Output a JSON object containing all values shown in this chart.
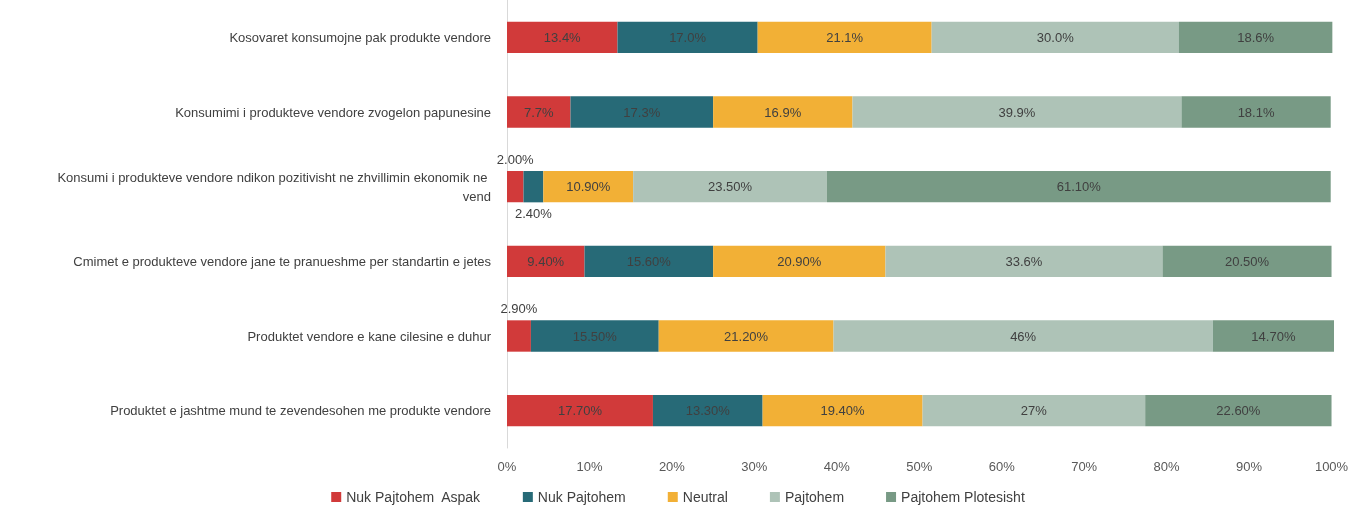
{
  "chart_data": {
    "type": "bar",
    "orientation": "horizontal",
    "stacked": true,
    "legend": "bottom",
    "categories": [
      "Kosovaret konsumojne pak produkte vendore",
      "Konsumimi i produkteve vendore zvogelon papunesine",
      "Konsumi i produkteve vendore ndikon pozitivisht ne zhvillimin ekonomik ne vend",
      "Cmimet e produkteve vendore jane te pranueshme per standartin e jetes",
      "Produktet vendore e kane cilesine e duhur",
      "Produktet e jashtme mund te zevendesohen me produkte vendore"
    ],
    "series": [
      {
        "name": "Nuk Pajtohem  Aspak",
        "color": "#d13a3a",
        "values": [
          13.4,
          7.7,
          2.0,
          9.4,
          2.9,
          17.7
        ],
        "value_labels": [
          "13.4%",
          "7.7%",
          "2.00%",
          "9.40%",
          "2.90%",
          "17.70%"
        ]
      },
      {
        "name": "Nuk Pajtohem",
        "color": "#276a77",
        "values": [
          17.0,
          17.3,
          2.4,
          15.6,
          15.5,
          13.3
        ],
        "value_labels": [
          "17.0%",
          "17.3%",
          "2.40%",
          "15.60%",
          "15.50%",
          "13.30%"
        ]
      },
      {
        "name": "Neutral",
        "color": "#f2b036",
        "values": [
          21.1,
          16.9,
          10.9,
          20.9,
          21.2,
          19.4
        ],
        "value_labels": [
          "21.1%",
          "16.9%",
          "10.90%",
          "20.90%",
          "21.20%",
          "19.40%"
        ]
      },
      {
        "name": "Pajtohem",
        "color": "#aec3b7",
        "values": [
          30.0,
          39.9,
          23.5,
          33.6,
          46,
          27
        ],
        "value_labels": [
          "30.0%",
          "39.9%",
          "23.50%",
          "33.6%",
          "46%",
          "27%"
        ]
      },
      {
        "name": "Pajtohem Plotesisht",
        "color": "#789a85",
        "values": [
          18.6,
          18.1,
          61.1,
          20.5,
          14.7,
          22.6
        ],
        "value_labels": [
          "18.6%",
          "18.1%",
          "61.10%",
          "20.50%",
          "14.70%",
          "22.60%"
        ]
      }
    ],
    "xlim": [
      0,
      100.3
    ],
    "xticks": [
      {
        "value": 0,
        "label": "0%"
      },
      {
        "value": 10,
        "label": "10%"
      },
      {
        "value": 20,
        "label": "20%"
      },
      {
        "value": 30,
        "label": "30%"
      },
      {
        "value": 40,
        "label": "40%"
      },
      {
        "value": 50,
        "label": "50%"
      },
      {
        "value": 60,
        "label": "60%"
      },
      {
        "value": 70,
        "label": "70%"
      },
      {
        "value": 80,
        "label": "80%"
      },
      {
        "value": 90,
        "label": "90%"
      },
      {
        "value": 100,
        "label": "100%"
      }
    ]
  }
}
